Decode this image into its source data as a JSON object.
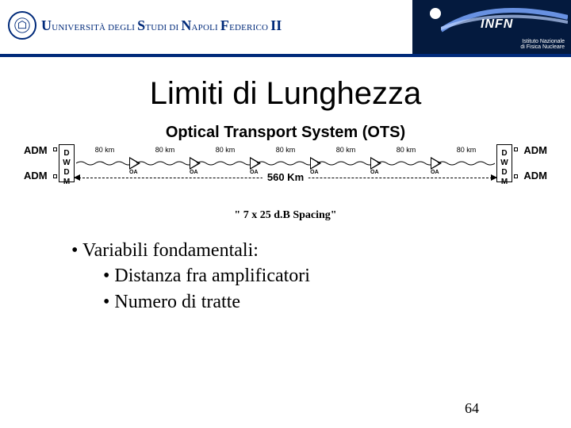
{
  "header": {
    "uni_prefix_small": "UNIVERSITÀ ",
    "uni_degli_small": "DEGLI ",
    "uni_studi_big": "STUDI ",
    "uni_di_small": "DI ",
    "uni_napoli_big": "NAPOLI ",
    "uni_fed_big": "FEDERICO II",
    "infn": "INFN",
    "infn_sub1": "Istituto Nazionale",
    "infn_sub2": "di Fisica Nucleare"
  },
  "title": "Limiti di Lunghezza",
  "subtitle": "Optical Transport System (OTS)",
  "diagram": {
    "adm": "ADM",
    "wdm": {
      "w": "D",
      "d": "W",
      "m": "D",
      "last": "M"
    },
    "segments": [
      {
        "label": "80 km",
        "oa": "OA"
      },
      {
        "label": "80 km",
        "oa": "OA"
      },
      {
        "label": "80 km",
        "oa": "OA"
      },
      {
        "label": "80 km",
        "oa": "OA"
      },
      {
        "label": "80 km",
        "oa": "OA"
      },
      {
        "label": "80 km",
        "oa": "OA"
      },
      {
        "label": "80 km",
        "oa": ""
      }
    ],
    "total": "560 Km",
    "colors": {
      "line": "#000000"
    }
  },
  "spacing": "\" 7 x 25 d.B Spacing\"",
  "bullets": {
    "l1": "• Variabili fondamentali:",
    "l2a": "• Distanza fra amplificatori",
    "l2b": "• Numero di tratte"
  },
  "page": "64"
}
